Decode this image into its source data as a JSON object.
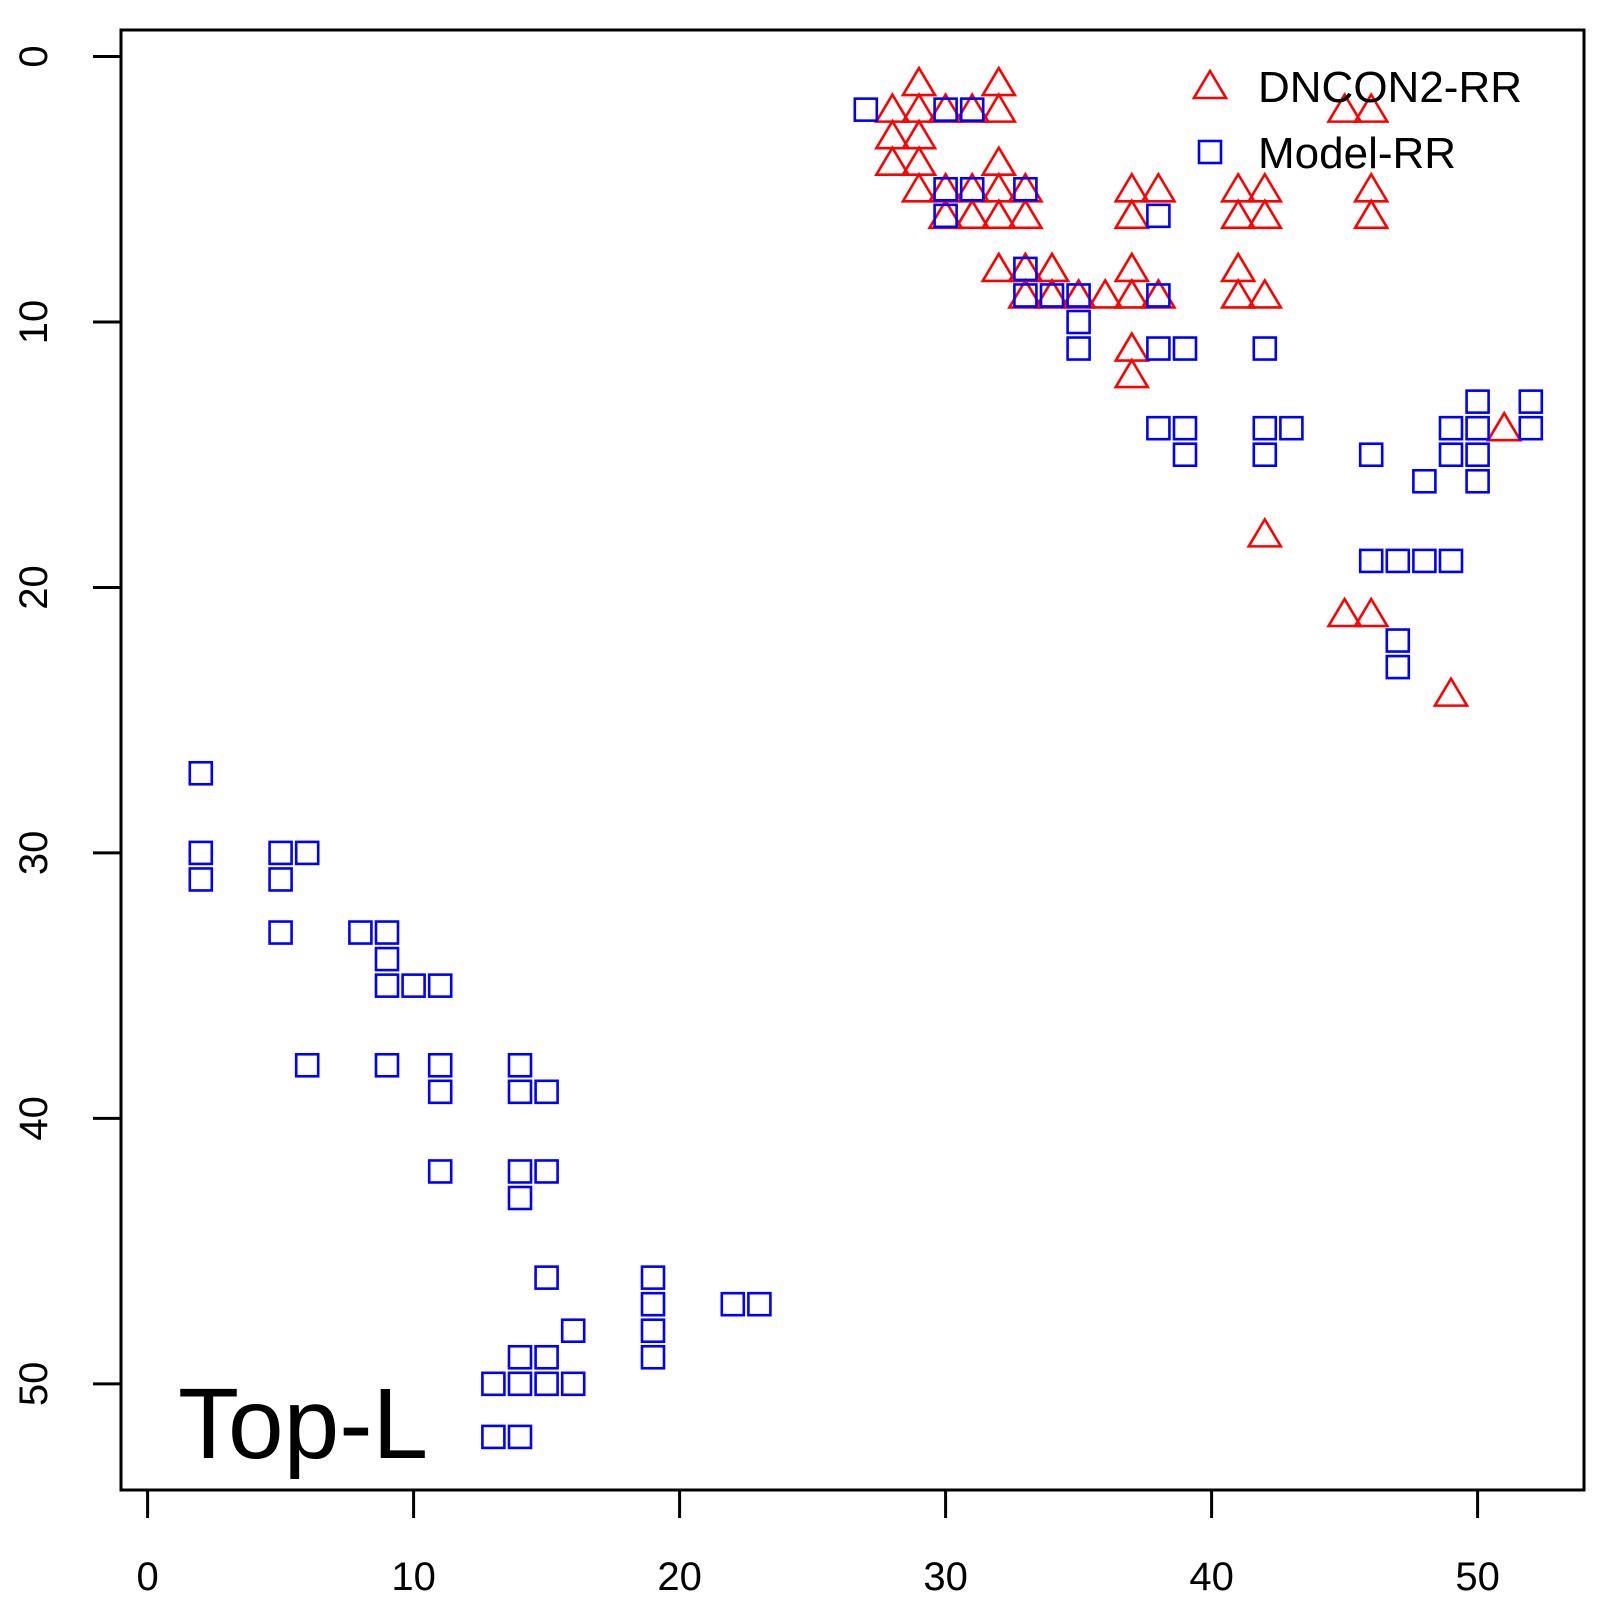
{
  "chart_data": {
    "type": "scatter",
    "title": "",
    "xlabel": "",
    "ylabel": "",
    "xlim": [
      -1,
      54
    ],
    "ylim": [
      54,
      -1
    ],
    "y_reversed": true,
    "x_ticks": [
      "0",
      "10",
      "20",
      "30",
      "40",
      "50"
    ],
    "y_ticks": [
      "0",
      "10",
      "20",
      "30",
      "40",
      "50"
    ],
    "grid": false,
    "legend_position": "top-right",
    "annotation": "Top-L",
    "series": [
      {
        "name": "DNCON2-RR",
        "marker": "triangle",
        "color": "#ff0000",
        "points": [
          [
            29,
            1
          ],
          [
            32,
            1
          ],
          [
            28,
            2
          ],
          [
            29,
            2
          ],
          [
            30,
            2
          ],
          [
            31,
            2
          ],
          [
            32,
            2
          ],
          [
            45,
            2
          ],
          [
            46,
            2
          ],
          [
            28,
            3
          ],
          [
            29,
            3
          ],
          [
            28,
            4
          ],
          [
            29,
            4
          ],
          [
            32,
            4
          ],
          [
            29,
            5
          ],
          [
            30,
            5
          ],
          [
            31,
            5
          ],
          [
            32,
            5
          ],
          [
            33,
            5
          ],
          [
            37,
            5
          ],
          [
            38,
            5
          ],
          [
            41,
            5
          ],
          [
            42,
            5
          ],
          [
            46,
            5
          ],
          [
            30,
            6
          ],
          [
            31,
            6
          ],
          [
            32,
            6
          ],
          [
            33,
            6
          ],
          [
            37,
            6
          ],
          [
            41,
            6
          ],
          [
            42,
            6
          ],
          [
            46,
            6
          ],
          [
            32,
            8
          ],
          [
            33,
            8
          ],
          [
            34,
            8
          ],
          [
            37,
            8
          ],
          [
            41,
            8
          ],
          [
            33,
            9
          ],
          [
            34,
            9
          ],
          [
            35,
            9
          ],
          [
            36,
            9
          ],
          [
            37,
            9
          ],
          [
            38,
            9
          ],
          [
            41,
            9
          ],
          [
            42,
            9
          ],
          [
            37,
            11
          ],
          [
            37,
            12
          ],
          [
            51,
            14
          ],
          [
            42,
            18
          ],
          [
            45,
            21
          ],
          [
            46,
            21
          ],
          [
            49,
            24
          ]
        ]
      },
      {
        "name": "Model-RR",
        "marker": "square",
        "color": "#0000ff",
        "points": [
          [
            27,
            2
          ],
          [
            30,
            2
          ],
          [
            31,
            2
          ],
          [
            30,
            5
          ],
          [
            31,
            5
          ],
          [
            33,
            5
          ],
          [
            30,
            6
          ],
          [
            38,
            6
          ],
          [
            33,
            8
          ],
          [
            33,
            9
          ],
          [
            34,
            9
          ],
          [
            35,
            9
          ],
          [
            38,
            9
          ],
          [
            35,
            10
          ],
          [
            35,
            11
          ],
          [
            38,
            11
          ],
          [
            39,
            11
          ],
          [
            42,
            11
          ],
          [
            50,
            13
          ],
          [
            52,
            13
          ],
          [
            38,
            14
          ],
          [
            39,
            14
          ],
          [
            42,
            14
          ],
          [
            43,
            14
          ],
          [
            49,
            14
          ],
          [
            50,
            14
          ],
          [
            52,
            14
          ],
          [
            39,
            15
          ],
          [
            42,
            15
          ],
          [
            46,
            15
          ],
          [
            49,
            15
          ],
          [
            50,
            15
          ],
          [
            48,
            16
          ],
          [
            50,
            16
          ],
          [
            46,
            19
          ],
          [
            47,
            19
          ],
          [
            48,
            19
          ],
          [
            49,
            19
          ],
          [
            47,
            22
          ],
          [
            47,
            23
          ],
          [
            2,
            27
          ],
          [
            2,
            30
          ],
          [
            5,
            30
          ],
          [
            6,
            30
          ],
          [
            2,
            31
          ],
          [
            5,
            31
          ],
          [
            5,
            33
          ],
          [
            8,
            33
          ],
          [
            9,
            33
          ],
          [
            9,
            34
          ],
          [
            9,
            35
          ],
          [
            10,
            35
          ],
          [
            11,
            35
          ],
          [
            6,
            38
          ],
          [
            9,
            38
          ],
          [
            11,
            38
          ],
          [
            14,
            38
          ],
          [
            11,
            39
          ],
          [
            14,
            39
          ],
          [
            15,
            39
          ],
          [
            11,
            42
          ],
          [
            14,
            42
          ],
          [
            15,
            42
          ],
          [
            14,
            43
          ],
          [
            15,
            46
          ],
          [
            19,
            46
          ],
          [
            19,
            47
          ],
          [
            22,
            47
          ],
          [
            23,
            47
          ],
          [
            16,
            48
          ],
          [
            19,
            48
          ],
          [
            14,
            49
          ],
          [
            15,
            49
          ],
          [
            19,
            49
          ],
          [
            13,
            50
          ],
          [
            14,
            50
          ],
          [
            15,
            50
          ],
          [
            16,
            50
          ],
          [
            13,
            52
          ],
          [
            14,
            52
          ]
        ]
      }
    ]
  }
}
